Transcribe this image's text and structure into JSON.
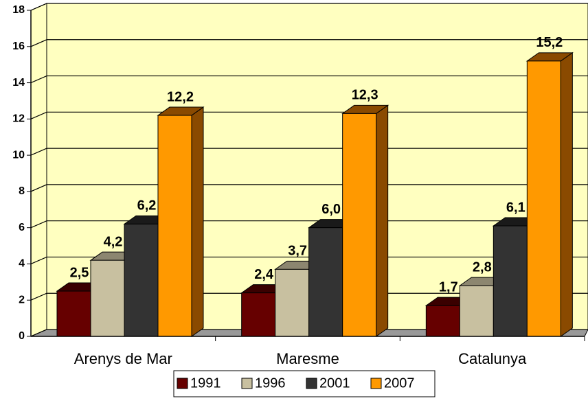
{
  "chart_data": {
    "type": "bar3d",
    "categories": [
      "Arenys de Mar",
      "Maresme",
      "Catalunya"
    ],
    "series": [
      {
        "name": "1991",
        "color": "#660000",
        "side": "#3a0000",
        "values": [
          2.5,
          2.4,
          1.7
        ],
        "value_labels": [
          "2,5",
          "2,4",
          "1,7"
        ]
      },
      {
        "name": "1996",
        "color": "#c8c0a0",
        "side": "#8c8670",
        "values": [
          4.2,
          3.7,
          2.8
        ],
        "value_labels": [
          "4,2",
          "3,7",
          "2,8"
        ]
      },
      {
        "name": "2001",
        "color": "#333333",
        "side": "#1a1a1a",
        "values": [
          6.2,
          6.0,
          6.1
        ],
        "value_labels": [
          "6,2",
          "6,0",
          "6,1"
        ]
      },
      {
        "name": "2007",
        "color": "#ff9900",
        "side": "#8a4a00",
        "values": [
          12.2,
          12.3,
          15.2
        ],
        "value_labels": [
          "12,2",
          "12,3",
          "15,2"
        ]
      }
    ],
    "ylim": [
      0,
      18
    ],
    "yticks": [
      0,
      2,
      4,
      6,
      8,
      10,
      12,
      14,
      16,
      18
    ],
    "grid": true,
    "legend": "bottom"
  }
}
